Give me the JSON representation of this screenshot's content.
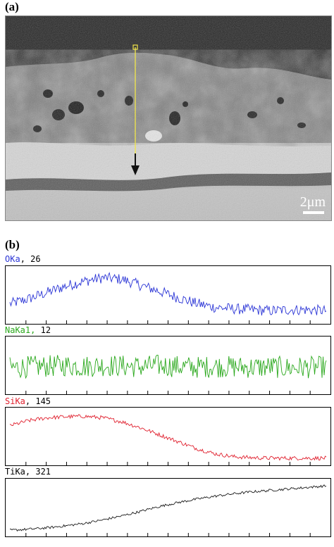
{
  "panel_a": {
    "label": "(a)",
    "scale_bar": "2μm"
  },
  "panel_b": {
    "label": "(b)"
  },
  "colors": {
    "O": "#2b35d6",
    "Na": "#2aa81c",
    "Si": "#e0202e",
    "Ti": "#1a1a1a",
    "line_scan": "#f2e64a"
  },
  "chart_data": [
    {
      "type": "line",
      "element_label": "OKa",
      "count": "26",
      "trend_profile": [
        0.32,
        0.42,
        0.55,
        0.68,
        0.78,
        0.85,
        0.82,
        0.7,
        0.58,
        0.45,
        0.33,
        0.25,
        0.22,
        0.2,
        0.18,
        0.2,
        0.2,
        0.18
      ],
      "noise": 0.22
    },
    {
      "type": "line",
      "element_label": "NaKa1,",
      "count": "12",
      "trend_profile": [
        0.45,
        0.47,
        0.48,
        0.5,
        0.48,
        0.5,
        0.49,
        0.47,
        0.5,
        0.48,
        0.46,
        0.48,
        0.47,
        0.46,
        0.47,
        0.45,
        0.46,
        0.47
      ],
      "noise": 0.45
    },
    {
      "type": "line",
      "element_label": "SiKa",
      "count": "145",
      "trend_profile": [
        0.72,
        0.82,
        0.88,
        0.9,
        0.91,
        0.88,
        0.8,
        0.68,
        0.54,
        0.4,
        0.26,
        0.15,
        0.09,
        0.07,
        0.06,
        0.06,
        0.06,
        0.06
      ],
      "noise": 0.08
    },
    {
      "type": "line",
      "element_label": "TiKa",
      "count": "321",
      "trend_profile": [
        0.04,
        0.06,
        0.09,
        0.13,
        0.18,
        0.25,
        0.33,
        0.42,
        0.52,
        0.6,
        0.67,
        0.73,
        0.78,
        0.82,
        0.85,
        0.88,
        0.91,
        0.94
      ],
      "noise": 0.05
    }
  ]
}
